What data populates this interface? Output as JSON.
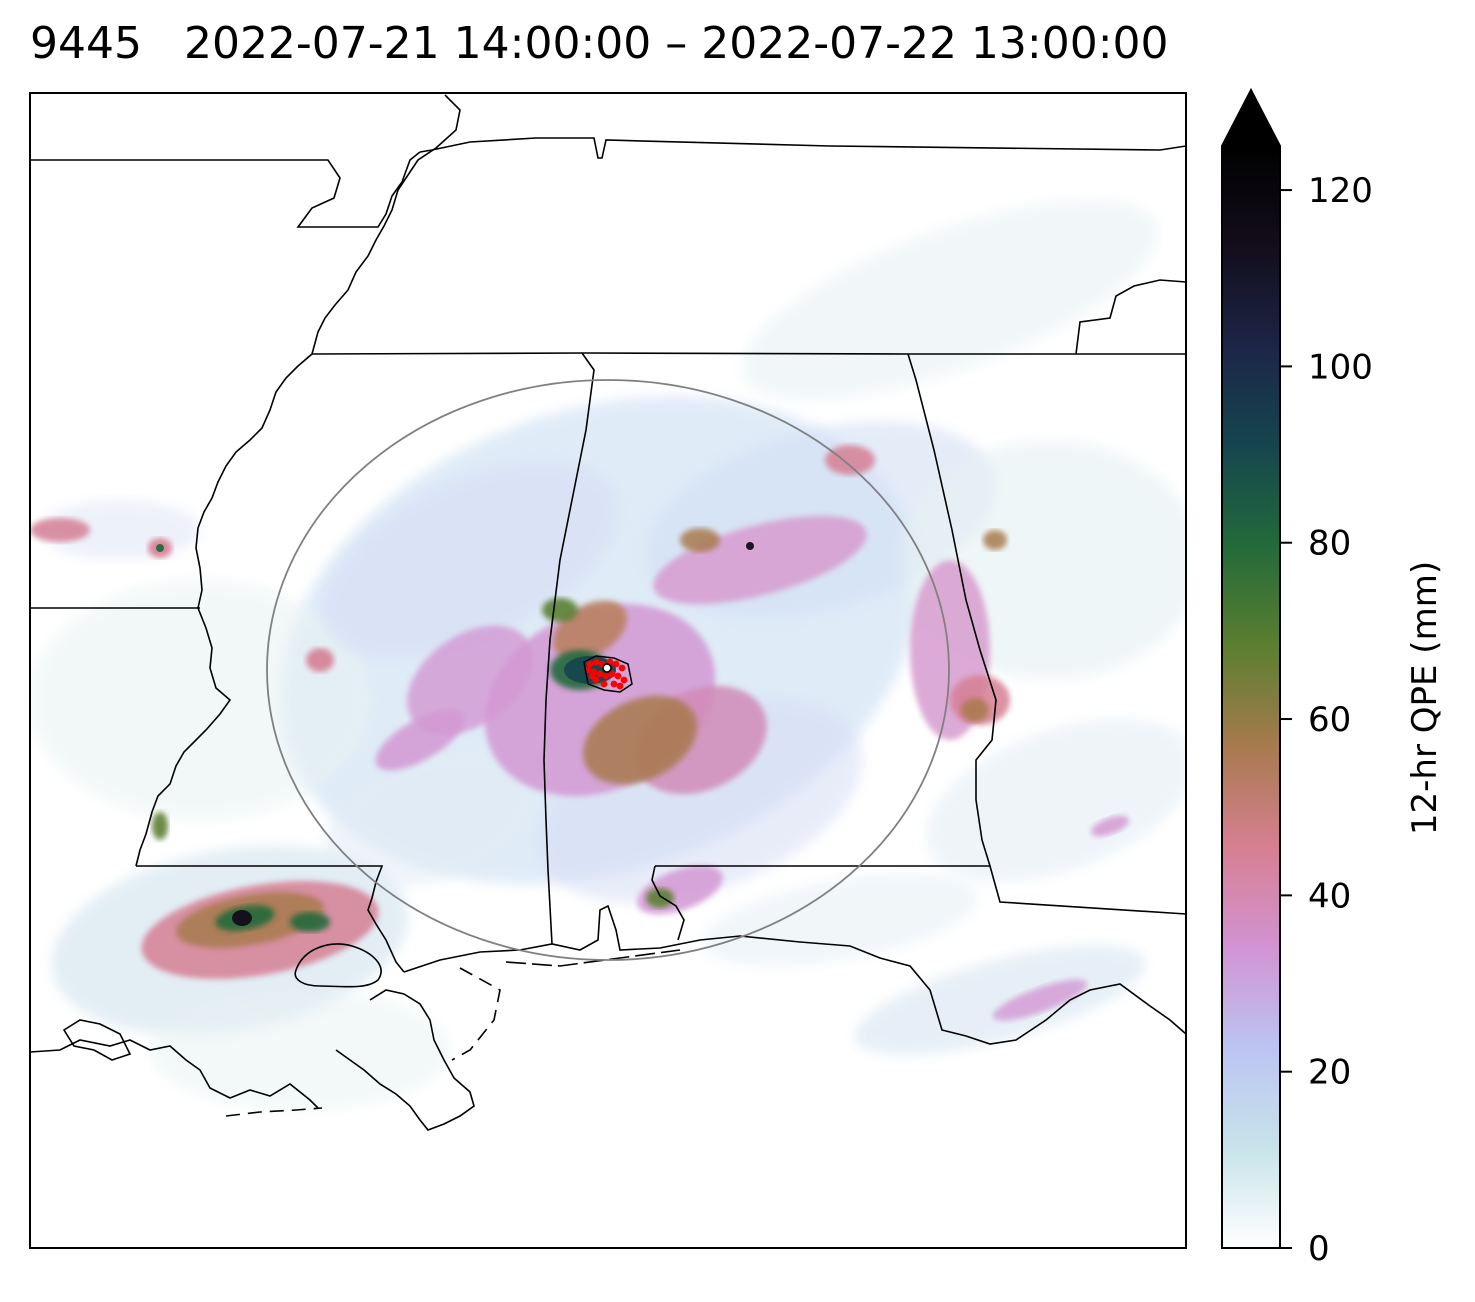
{
  "title": {
    "id": "9445",
    "time_range": "2022-07-21 14:00:00 – 2022-07-22 13:00:00"
  },
  "colorbar": {
    "label": "12-hr QPE (mm)",
    "ticks": [
      "0",
      "20",
      "40",
      "60",
      "80",
      "100",
      "120"
    ],
    "min": 0,
    "max": 125,
    "extend": "max",
    "colors": [
      "#ffffff",
      "#c7e3ea",
      "#bcc4f2",
      "#d193d3",
      "#d77f92",
      "#a87a4e",
      "#5c7f30",
      "#246a3a",
      "#15464e",
      "#1c2547",
      "#130d1b",
      "#000000"
    ]
  },
  "map": {
    "region": "Mississippi / Alabama / Louisiana Gulf Coast",
    "radius_circle_color": "#808080",
    "marker_color": "#ff0000"
  }
}
